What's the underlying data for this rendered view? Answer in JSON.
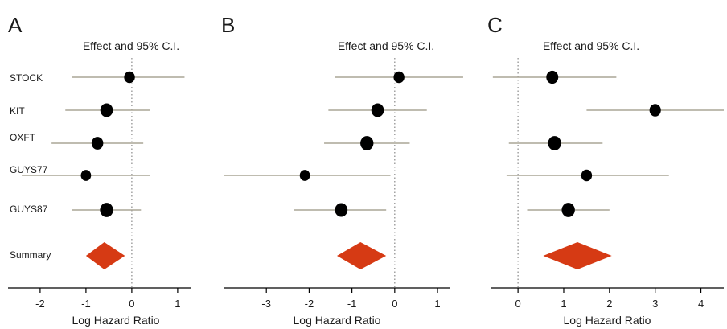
{
  "chart_data": [
    {
      "type": "forest",
      "panel_label": "A",
      "title": "Effect and 95% C.I.",
      "xlabel": "Log Hazard Ratio",
      "xlim": [
        -2.7,
        1.3
      ],
      "xticks": [
        -2,
        -1,
        0,
        1
      ],
      "reference_line": 0,
      "grid": false,
      "studies": [
        {
          "label": "STOCK",
          "estimate": -0.05,
          "lower": -1.3,
          "upper": 1.15,
          "weight": 0.7
        },
        {
          "label": "KIT",
          "estimate": -0.55,
          "lower": -1.45,
          "upper": 0.4,
          "weight": 1.0
        },
        {
          "label": "OXFT",
          "estimate": -0.75,
          "lower": -1.75,
          "upper": 0.25,
          "weight": 0.85
        },
        {
          "label": "GUYS77",
          "estimate": -1.0,
          "lower": -2.4,
          "upper": 0.4,
          "weight": 0.6
        },
        {
          "label": "GUYS87",
          "estimate": -0.55,
          "lower": -1.3,
          "upper": 0.2,
          "weight": 1.1
        }
      ],
      "summary": {
        "label": "Summary",
        "estimate": -0.6,
        "lower": -1.0,
        "upper": -0.15
      }
    },
    {
      "type": "forest",
      "panel_label": "B",
      "title": "Effect and 95% C.I.",
      "xlabel": "Log Hazard Ratio",
      "xlim": [
        -4.0,
        1.3
      ],
      "xticks": [
        -3,
        -2,
        -1,
        0,
        1
      ],
      "reference_line": 0,
      "grid": false,
      "studies": [
        {
          "label": "STOCK",
          "estimate": 0.1,
          "lower": -1.4,
          "upper": 1.6,
          "weight": 0.7
        },
        {
          "label": "KIT",
          "estimate": -0.4,
          "lower": -1.55,
          "upper": 0.75,
          "weight": 1.0
        },
        {
          "label": "OXFT",
          "estimate": -0.65,
          "lower": -1.65,
          "upper": 0.35,
          "weight": 1.1
        },
        {
          "label": "GUYS77",
          "estimate": -2.1,
          "lower": -4.0,
          "upper": -0.1,
          "weight": 0.6
        },
        {
          "label": "GUYS87",
          "estimate": -1.25,
          "lower": -2.35,
          "upper": -0.2,
          "weight": 1.0
        }
      ],
      "summary": {
        "label": "Summary",
        "estimate": -0.8,
        "lower": -1.35,
        "upper": -0.2
      }
    },
    {
      "type": "forest",
      "panel_label": "C",
      "title": "Effect and 95% C.I.",
      "xlabel": "Log Hazard Ratio",
      "xlim": [
        -0.6,
        4.5
      ],
      "xticks": [
        0,
        1,
        2,
        3,
        4
      ],
      "reference_line": 0,
      "grid": false,
      "studies": [
        {
          "label": "STOCK",
          "estimate": 0.75,
          "lower": -0.55,
          "upper": 2.15,
          "weight": 0.9
        },
        {
          "label": "KIT",
          "estimate": 3.0,
          "lower": 1.5,
          "upper": 4.5,
          "weight": 0.8
        },
        {
          "label": "OXFT",
          "estimate": 0.8,
          "lower": -0.2,
          "upper": 1.85,
          "weight": 1.1
        },
        {
          "label": "GUYS77",
          "estimate": 1.5,
          "lower": -0.25,
          "upper": 3.3,
          "weight": 0.7
        },
        {
          "label": "GUYS87",
          "estimate": 1.1,
          "lower": 0.2,
          "upper": 2.0,
          "weight": 1.1
        }
      ],
      "summary": {
        "label": "Summary",
        "estimate": 1.3,
        "lower": 0.55,
        "upper": 2.05
      }
    }
  ],
  "colors": {
    "ci_line": "#aaa596",
    "point": "#000000",
    "summary": "#d63a14",
    "axis": "#000000",
    "reference": "#8a8a8a"
  }
}
